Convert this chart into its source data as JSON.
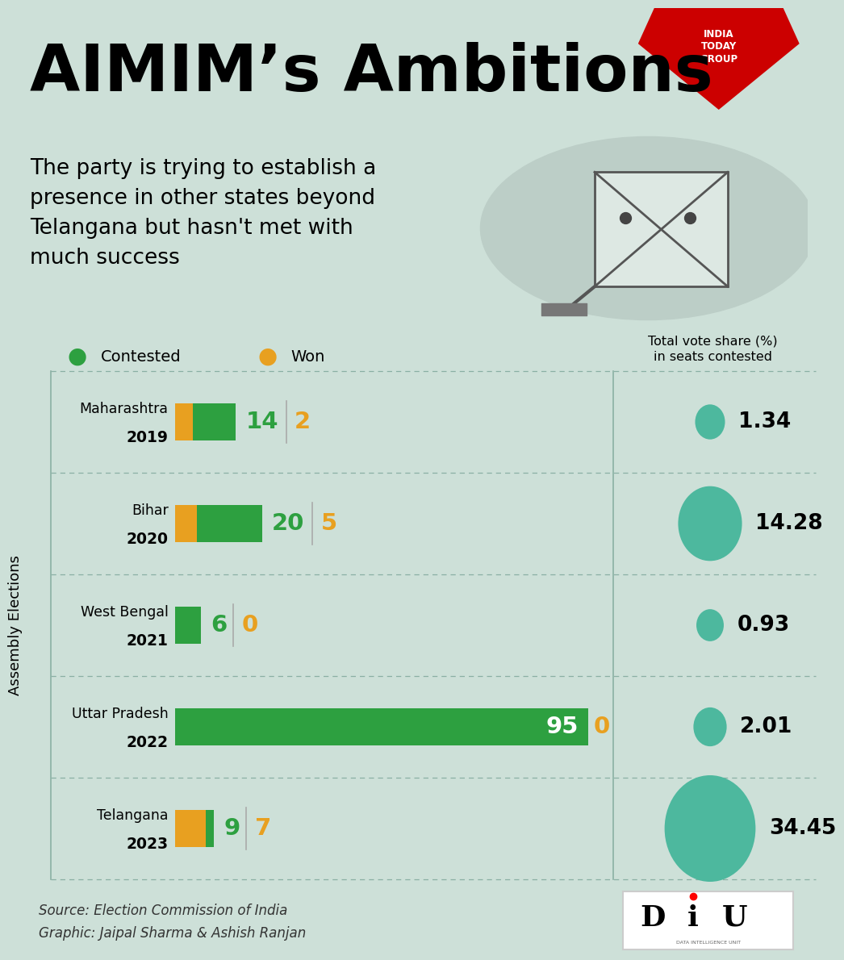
{
  "title": "AIMIM’s Ambitions",
  "subtitle_lines": [
    "The party is trying to establish a",
    "presence in other states beyond",
    "Telangana but hasn't met with",
    "much success"
  ],
  "bg_color": "#cde0d8",
  "rows": [
    {
      "label_top": "Maharashtra",
      "label_bot": "2019",
      "contested": 14,
      "won": 2,
      "vote_share": 1.34
    },
    {
      "label_top": "Bihar",
      "label_bot": "2020",
      "contested": 20,
      "won": 5,
      "vote_share": 14.28
    },
    {
      "label_top": "West Bengal",
      "label_bot": "2021",
      "contested": 6,
      "won": 0,
      "vote_share": 0.93
    },
    {
      "label_top": "Uttar Pradesh",
      "label_bot": "2022",
      "contested": 95,
      "won": 0,
      "vote_share": 2.01
    },
    {
      "label_top": "Telangana",
      "label_bot": "2023",
      "contested": 9,
      "won": 7,
      "vote_share": 34.45
    }
  ],
  "max_contested": 95,
  "bar_color": "#2da040",
  "won_color": "#e8a020",
  "circle_color": "#4db89e",
  "vote_share_label": "Total vote share (%)\nin seats contested",
  "legend_contested": "Contested",
  "legend_won": "Won",
  "y_axis_label": "Assembly Elections",
  "source_line1": "Source: Election Commission of India",
  "source_line2": "Graphic: Jaipal Sharma & Ashish Ranjan"
}
